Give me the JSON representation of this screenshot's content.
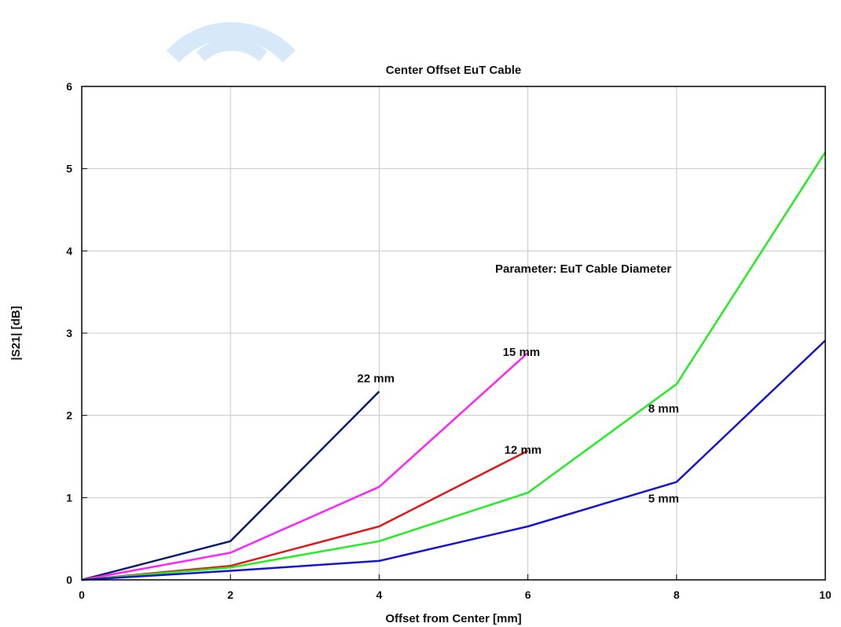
{
  "chart_data": {
    "type": "line",
    "title": "Center Offset EuT Cable",
    "xlabel": "Offset from Center [mm]",
    "ylabel": "|S21| [dB]",
    "xlim": [
      0,
      10
    ],
    "ylim": [
      0,
      6
    ],
    "xticks": [
      0,
      2,
      4,
      6,
      8,
      10
    ],
    "yticks": [
      0,
      1,
      2,
      3,
      4,
      5,
      6
    ],
    "grid": true,
    "annotation": "Parameter: EuT Cable Diameter",
    "series": [
      {
        "name": "22 mm",
        "color": "#0a1a6b",
        "x": [
          0,
          2,
          4
        ],
        "y": [
          0,
          0.47,
          2.29
        ]
      },
      {
        "name": "15 mm",
        "color": "#ff22ff",
        "x": [
          0,
          2,
          4,
          6
        ],
        "y": [
          0,
          0.33,
          1.13,
          2.76
        ]
      },
      {
        "name": "12 mm",
        "color": "#e01818",
        "x": [
          0,
          2,
          4,
          6
        ],
        "y": [
          0,
          0.17,
          0.65,
          1.57
        ]
      },
      {
        "name": "8 mm",
        "color": "#22ee22",
        "x": [
          0,
          2,
          4,
          6,
          8,
          10
        ],
        "y": [
          0,
          0.15,
          0.47,
          1.06,
          2.38,
          5.2
        ]
      },
      {
        "name": "5 mm",
        "color": "#1515d0",
        "x": [
          0,
          2,
          4,
          6,
          8,
          10
        ],
        "y": [
          0,
          0.11,
          0.23,
          0.65,
          1.19,
          2.91
        ]
      }
    ]
  }
}
